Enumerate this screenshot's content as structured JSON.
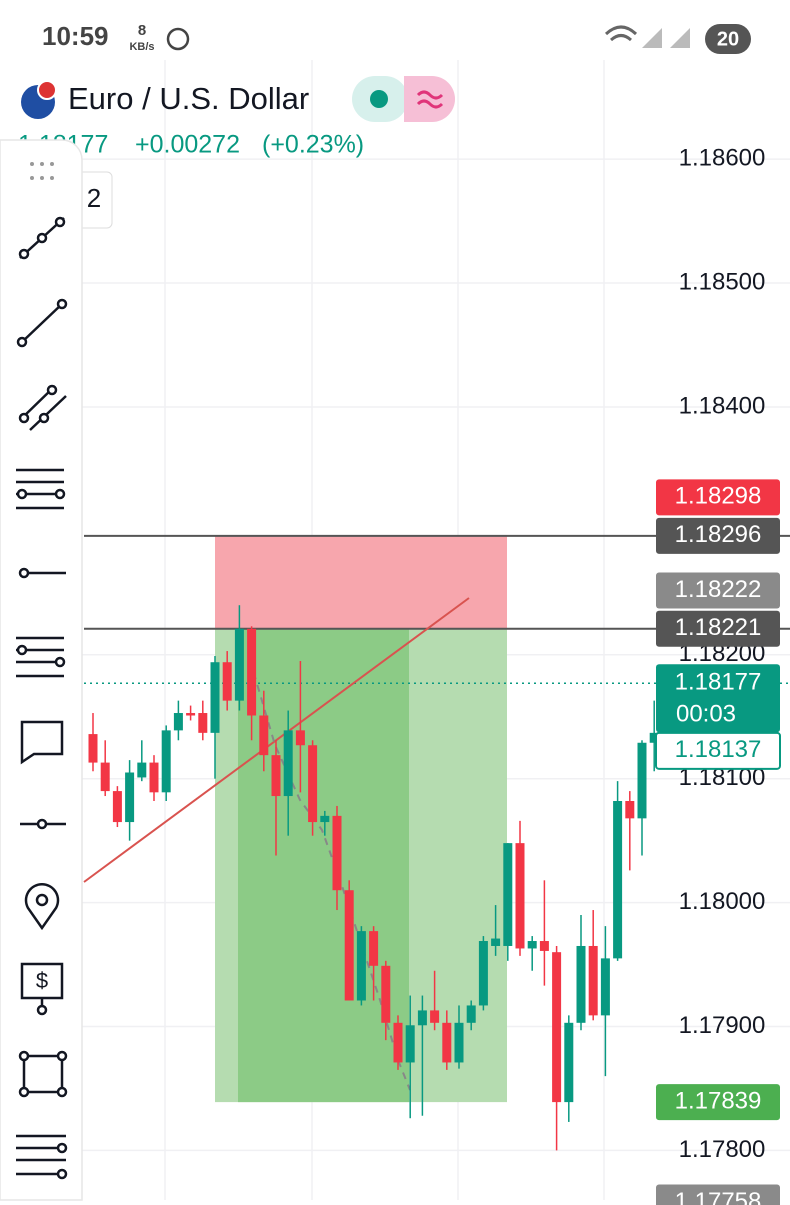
{
  "status_bar": {
    "time": "10:59",
    "speed": "8",
    "speed_unit": "KB/s",
    "battery": "20"
  },
  "header": {
    "symbol": "Euro / U.S. Dollar",
    "price": "1.18177",
    "change": "+0.00272",
    "change_percent": "(+0.23%)",
    "interval": "2"
  },
  "chart_data": {
    "type": "candlestick",
    "ylim": [
      1.1776,
      1.1868
    ],
    "yticks": [
      {
        "value": 1.186,
        "label": "1.18600"
      },
      {
        "value": 1.185,
        "label": "1.18500"
      },
      {
        "value": 1.184,
        "label": "1.18400"
      },
      {
        "value": 1.182,
        "label": "1.18200"
      },
      {
        "value": 1.181,
        "label": "1.18100"
      },
      {
        "value": 1.18,
        "label": "1.18000"
      },
      {
        "value": 1.179,
        "label": "1.17900"
      },
      {
        "value": 1.178,
        "label": "1.17800"
      }
    ],
    "grid": true,
    "up_color": "#089981",
    "down_color": "#f23645",
    "open": [
      1.18136,
      1.18113,
      1.1809,
      1.18065,
      1.18101,
      1.18113,
      1.18089,
      1.18139,
      1.18153,
      1.18153,
      1.18137,
      1.18194,
      1.18163,
      1.18221,
      1.18151,
      1.18119,
      1.18086,
      1.18139,
      1.18127,
      1.18065,
      1.1807,
      1.1801,
      1.17921,
      1.17977,
      1.17949,
      1.17903,
      1.17871,
      1.17901,
      1.17913,
      1.17903,
      1.17871,
      1.17903,
      1.17917,
      1.17965,
      1.17965,
      1.18048,
      1.17963,
      1.17969,
      1.1796,
      1.17839,
      1.17903,
      1.17965,
      1.17909,
      1.17955,
      1.18082,
      1.18068,
      1.18129
    ],
    "high": [
      1.18153,
      1.18131,
      1.18094,
      1.18115,
      1.18131,
      1.18119,
      1.18143,
      1.18163,
      1.18159,
      1.18163,
      1.18199,
      1.18203,
      1.1824,
      1.18223,
      1.18171,
      1.18131,
      1.18155,
      1.18195,
      1.18131,
      1.18074,
      1.18078,
      1.18018,
      1.17981,
      1.17981,
      1.17953,
      1.17909,
      1.17925,
      1.17925,
      1.17945,
      1.17913,
      1.17917,
      1.17921,
      1.17973,
      1.17998,
      1.18048,
      1.18066,
      1.17973,
      1.18018,
      1.17965,
      1.17909,
      1.1799,
      1.17994,
      1.17981,
      1.18098,
      1.1809,
      1.18131,
      1.18163
    ],
    "low": [
      1.18106,
      1.18086,
      1.18061,
      1.1805,
      1.18098,
      1.18082,
      1.18082,
      1.18131,
      1.18147,
      1.18131,
      1.181,
      1.18155,
      1.18155,
      1.18131,
      1.18106,
      1.18038,
      1.18054,
      1.18089,
      1.18054,
      1.18054,
      1.17994,
      1.17921,
      1.17917,
      1.17921,
      1.17889,
      1.17865,
      1.17826,
      1.17828,
      1.17897,
      1.17865,
      1.17866,
      1.17897,
      1.17913,
      1.17957,
      1.17953,
      1.17957,
      1.17945,
      1.17933,
      1.178,
      1.17823,
      1.17897,
      1.17905,
      1.1786,
      1.17953,
      1.18026,
      1.18038,
      1.18106
    ],
    "close": [
      1.18113,
      1.1809,
      1.18065,
      1.18105,
      1.18113,
      1.18089,
      1.18139,
      1.18153,
      1.18151,
      1.18137,
      1.18194,
      1.18163,
      1.18221,
      1.18151,
      1.18119,
      1.18086,
      1.18139,
      1.18127,
      1.18065,
      1.1807,
      1.1801,
      1.17921,
      1.17977,
      1.17949,
      1.17903,
      1.17871,
      1.17901,
      1.17913,
      1.17903,
      1.17871,
      1.17903,
      1.17917,
      1.17969,
      1.17971,
      1.18048,
      1.17963,
      1.17969,
      1.17961,
      1.17839,
      1.17903,
      1.17965,
      1.17909,
      1.17955,
      1.18082,
      1.18068,
      1.18129,
      1.18137
    ],
    "price_labels": [
      {
        "value": 1.18298,
        "color": "#f23645"
      },
      {
        "value": 1.18296,
        "color": "#555555"
      },
      {
        "value": 1.18222,
        "color": "#8a8a8a"
      },
      {
        "value": 1.18221,
        "color": "#555555"
      },
      {
        "value": 1.18177,
        "color": "#089981",
        "countdown": "00:03"
      },
      {
        "value": 1.18137,
        "color": "#ffffff"
      },
      {
        "value": 1.17839,
        "color": "#4caf50"
      },
      {
        "value": 1.17758,
        "color": "#8a8a8a"
      }
    ]
  }
}
